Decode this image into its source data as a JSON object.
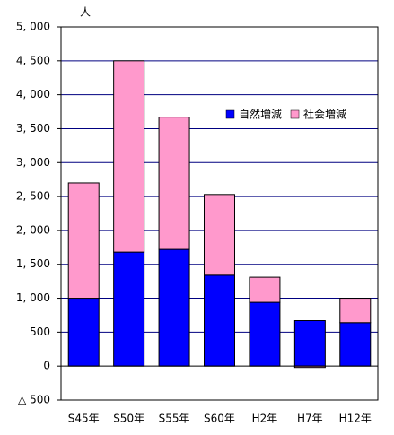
{
  "chart_data": {
    "type": "bar",
    "stacked": true,
    "y_unit": "人",
    "categories": [
      "S45年",
      "S50年",
      "S55年",
      "S60年",
      "H2年",
      "H7年",
      "H12年"
    ],
    "series": [
      {
        "name": "自然増減",
        "color": "#0000ff",
        "values": [
          1000,
          1680,
          1720,
          1340,
          940,
          670,
          640
        ]
      },
      {
        "name": "社会増減",
        "color": "#ff99cc",
        "values": [
          1700,
          2820,
          1950,
          1190,
          370,
          -20,
          360
        ]
      }
    ],
    "ylim": [
      -500,
      5000
    ],
    "yticks": [
      {
        "value": -500,
        "label": "△ 500"
      },
      0,
      500,
      {
        "value": 1000,
        "label": "1, 000"
      },
      {
        "value": 1500,
        "label": "1, 500"
      },
      {
        "value": 2000,
        "label": "2, 000"
      },
      {
        "value": 2500,
        "label": "2, 500"
      },
      {
        "value": 3000,
        "label": "3, 000"
      },
      {
        "value": 3500,
        "label": "3, 500"
      },
      {
        "value": 4000,
        "label": "4, 000"
      },
      {
        "value": 4500,
        "label": "4, 500"
      },
      {
        "value": 5000,
        "label": "5, 000"
      }
    ],
    "grid": true,
    "grid_color": "#000080",
    "legend": "upper-right"
  }
}
